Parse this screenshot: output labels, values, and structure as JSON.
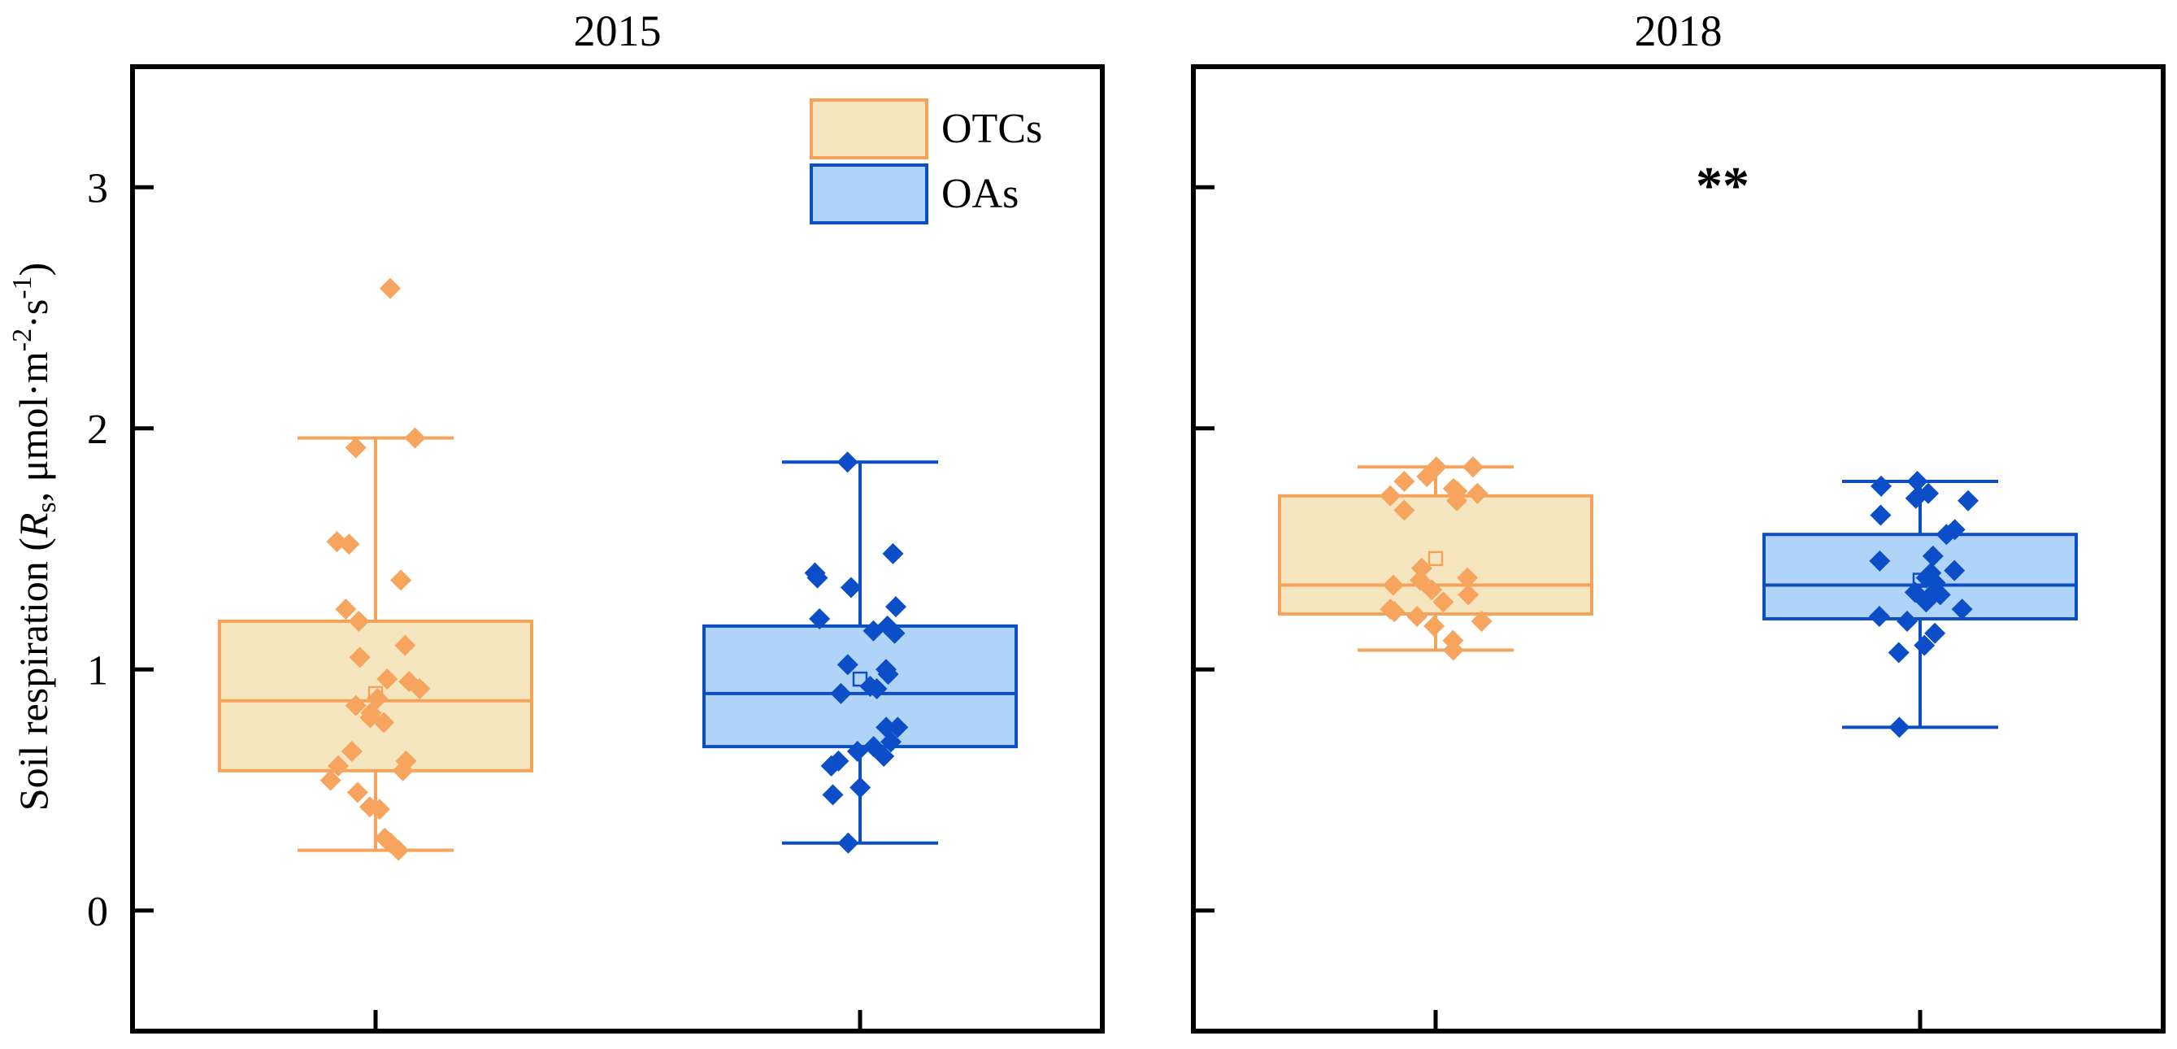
{
  "chart_data": {
    "type": "box",
    "ylabel": {
      "prefix": "Soil respiration (",
      "symbol": "R",
      "symbol_sub": "s",
      "unit_mid": ", μmol·m",
      "exp1": "-2",
      "unit_dot": "·s",
      "exp2": "-1",
      "suffix": ")"
    },
    "ylim": [
      -0.5,
      3.5
    ],
    "yticks": [
      0,
      1,
      2,
      3
    ],
    "ytick_labels": [
      "0",
      "1",
      "2",
      "3"
    ],
    "legend": {
      "position": "top-right of left panel",
      "entries": [
        {
          "label": "OTCs",
          "fill": "#f5e6c0",
          "stroke": "#f5a35a"
        },
        {
          "label": "OAs",
          "fill": "#b0d4f7",
          "stroke": "#0d4ec2"
        }
      ]
    },
    "colors": {
      "OTCs": {
        "fill": "#f5e6c0",
        "stroke": "#f5a35a",
        "point": "#f7a55e"
      },
      "OAs": {
        "fill": "#b0d4f7",
        "stroke": "#0d4ec2",
        "point": "#0b4ec7"
      }
    },
    "panels": [
      {
        "title": "2015",
        "annotation": "",
        "groups": [
          {
            "name": "OTCs",
            "whisker_low": 0.25,
            "q1": 0.58,
            "median": 0.87,
            "q3": 1.2,
            "whisker_high": 1.96,
            "mean": 0.9,
            "points": [
              2.58,
              1.96,
              1.92,
              1.53,
              1.52,
              1.37,
              1.25,
              1.2,
              1.1,
              1.05,
              0.96,
              0.95,
              0.92,
              0.88,
              0.85,
              0.82,
              0.8,
              0.78,
              0.66,
              0.62,
              0.6,
              0.58,
              0.54,
              0.49,
              0.43,
              0.42,
              0.3,
              0.28,
              0.25
            ]
          },
          {
            "name": "OAs",
            "whisker_low": 0.28,
            "q1": 0.68,
            "median": 0.9,
            "q3": 1.18,
            "whisker_high": 1.86,
            "mean": 0.96,
            "points": [
              1.86,
              1.48,
              1.4,
              1.38,
              1.34,
              1.26,
              1.21,
              1.18,
              1.16,
              1.15,
              1.02,
              1.0,
              0.98,
              0.93,
              0.92,
              0.9,
              0.76,
              0.76,
              0.7,
              0.68,
              0.66,
              0.64,
              0.62,
              0.6,
              0.51,
              0.48,
              0.28
            ]
          }
        ]
      },
      {
        "title": "2018",
        "annotation": "**",
        "groups": [
          {
            "name": "OTCs",
            "whisker_low": 1.08,
            "q1": 1.23,
            "median": 1.35,
            "q3": 1.72,
            "whisker_high": 1.84,
            "mean": 1.46,
            "points": [
              1.84,
              1.84,
              1.8,
              1.78,
              1.75,
              1.74,
              1.73,
              1.72,
              1.7,
              1.66,
              1.42,
              1.38,
              1.37,
              1.35,
              1.33,
              1.31,
              1.28,
              1.25,
              1.24,
              1.22,
              1.2,
              1.18,
              1.12,
              1.08
            ]
          },
          {
            "name": "OAs",
            "whisker_low": 0.76,
            "q1": 1.21,
            "median": 1.35,
            "q3": 1.56,
            "whisker_high": 1.78,
            "mean": 1.37,
            "points": [
              1.78,
              1.76,
              1.73,
              1.71,
              1.7,
              1.64,
              1.58,
              1.56,
              1.47,
              1.45,
              1.41,
              1.4,
              1.38,
              1.36,
              1.32,
              1.31,
              1.3,
              1.28,
              1.25,
              1.22,
              1.2,
              1.15,
              1.1,
              1.07,
              0.76
            ]
          }
        ]
      }
    ]
  }
}
